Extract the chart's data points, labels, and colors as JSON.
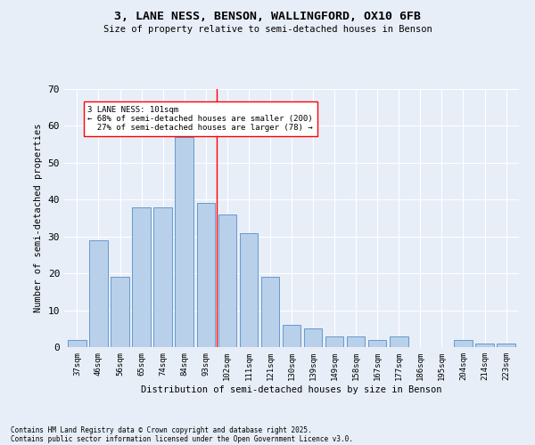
{
  "title1": "3, LANE NESS, BENSON, WALLINGFORD, OX10 6FB",
  "title2": "Size of property relative to semi-detached houses in Benson",
  "xlabel": "Distribution of semi-detached houses by size in Benson",
  "ylabel": "Number of semi-detached properties",
  "categories": [
    "37sqm",
    "46sqm",
    "56sqm",
    "65sqm",
    "74sqm",
    "84sqm",
    "93sqm",
    "102sqm",
    "111sqm",
    "121sqm",
    "130sqm",
    "139sqm",
    "149sqm",
    "158sqm",
    "167sqm",
    "177sqm",
    "186sqm",
    "195sqm",
    "204sqm",
    "214sqm",
    "223sqm"
  ],
  "values": [
    2,
    29,
    19,
    38,
    38,
    57,
    39,
    36,
    31,
    19,
    6,
    5,
    3,
    3,
    2,
    3,
    0,
    0,
    2,
    1,
    1
  ],
  "bar_color": "#b8d0ea",
  "bar_edge_color": "#6699cc",
  "property_label": "3 LANE NESS: 101sqm",
  "pct_smaller": 68,
  "n_smaller": 200,
  "pct_larger": 27,
  "n_larger": 78,
  "vline_pos": 6.5,
  "ylim": [
    0,
    70
  ],
  "background_color": "#e8eef8",
  "grid_color": "#ffffff",
  "footnote1": "Contains HM Land Registry data © Crown copyright and database right 2025.",
  "footnote2": "Contains public sector information licensed under the Open Government Licence v3.0."
}
